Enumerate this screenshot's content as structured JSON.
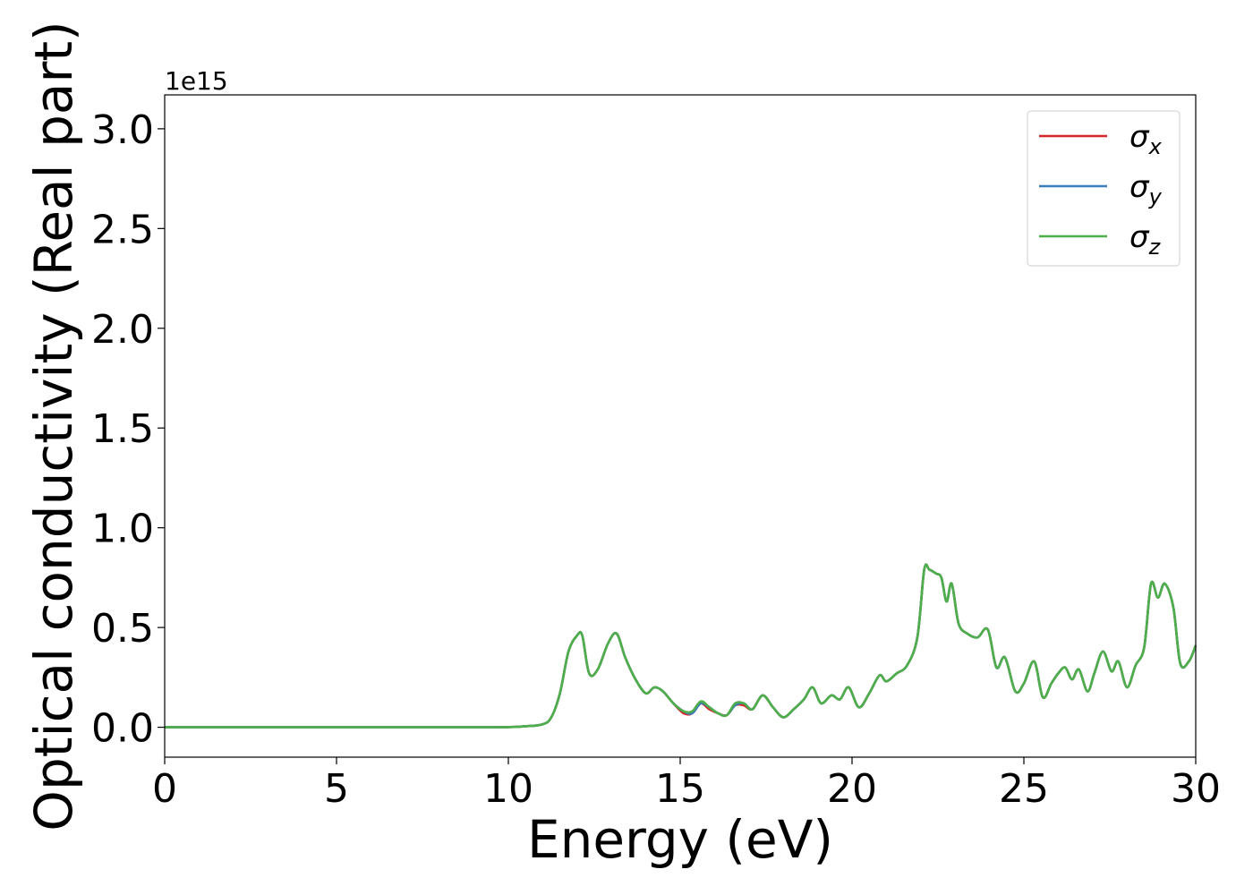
{
  "chart_data": {
    "type": "line",
    "xlabel": "Energy (eV)",
    "ylabel": "Optical conductivity (Real part)",
    "y_offset_label": "1e15",
    "xlim": [
      0,
      30
    ],
    "ylim": [
      -0.15,
      3.17
    ],
    "y_scale": 1000000000000000.0,
    "xticks": [
      "0",
      "5",
      "10",
      "15",
      "20",
      "25",
      "30"
    ],
    "yticks": [
      "0.0",
      "0.5",
      "1.0",
      "1.5",
      "2.0",
      "2.5",
      "3.0"
    ],
    "grid": false,
    "legend_position": "upper right",
    "legend": [
      {
        "symbol": "σ",
        "sub": "x",
        "color": "#d62728"
      },
      {
        "symbol": "σ",
        "sub": "y",
        "color": "#3a7dbb"
      },
      {
        "symbol": "σ",
        "sub": "z",
        "color": "#4daf4a"
      }
    ],
    "x": [
      0,
      5,
      9.5,
      10.5,
      11,
      11.25,
      11.5,
      11.75,
      12.0,
      12.15,
      12.35,
      12.6,
      12.9,
      13.15,
      13.4,
      13.7,
      14.0,
      14.25,
      14.5,
      14.8,
      15.1,
      15.35,
      15.6,
      15.85,
      16.1,
      16.35,
      16.6,
      16.85,
      17.1,
      17.4,
      17.7,
      18.0,
      18.3,
      18.6,
      18.85,
      19.1,
      19.4,
      19.65,
      19.9,
      20.2,
      20.5,
      20.8,
      21.0,
      21.3,
      21.6,
      21.9,
      22.1,
      22.25,
      22.45,
      22.6,
      22.75,
      22.9,
      23.1,
      23.35,
      23.65,
      23.95,
      24.2,
      24.45,
      24.75,
      25.0,
      25.3,
      25.55,
      25.8,
      26.0,
      26.2,
      26.4,
      26.6,
      26.85,
      27.05,
      27.3,
      27.55,
      27.75,
      28.0,
      28.25,
      28.5,
      28.7,
      28.9,
      29.1,
      29.35,
      29.55,
      29.8,
      30.0
    ],
    "series": [
      {
        "values": [
          0.0,
          0.0,
          0.0,
          0.005,
          0.015,
          0.05,
          0.17,
          0.38,
          0.46,
          0.46,
          0.27,
          0.29,
          0.42,
          0.47,
          0.35,
          0.24,
          0.17,
          0.2,
          0.18,
          0.12,
          0.07,
          0.07,
          0.12,
          0.09,
          0.07,
          0.06,
          0.11,
          0.11,
          0.09,
          0.16,
          0.1,
          0.05,
          0.09,
          0.14,
          0.2,
          0.12,
          0.16,
          0.14,
          0.2,
          0.1,
          0.17,
          0.26,
          0.23,
          0.27,
          0.31,
          0.45,
          0.79,
          0.79,
          0.77,
          0.75,
          0.63,
          0.72,
          0.52,
          0.47,
          0.45,
          0.49,
          0.3,
          0.35,
          0.18,
          0.22,
          0.33,
          0.15,
          0.22,
          0.27,
          0.3,
          0.24,
          0.29,
          0.18,
          0.27,
          0.38,
          0.28,
          0.33,
          0.2,
          0.31,
          0.4,
          0.72,
          0.65,
          0.72,
          0.6,
          0.32,
          0.33,
          0.41
        ]
      },
      {
        "values": [
          0.0,
          0.0,
          0.0,
          0.005,
          0.015,
          0.05,
          0.17,
          0.38,
          0.46,
          0.46,
          0.27,
          0.29,
          0.42,
          0.47,
          0.35,
          0.24,
          0.17,
          0.2,
          0.18,
          0.12,
          0.08,
          0.07,
          0.12,
          0.1,
          0.07,
          0.06,
          0.11,
          0.12,
          0.09,
          0.16,
          0.1,
          0.05,
          0.09,
          0.14,
          0.2,
          0.12,
          0.16,
          0.14,
          0.2,
          0.1,
          0.17,
          0.26,
          0.23,
          0.27,
          0.31,
          0.45,
          0.79,
          0.79,
          0.77,
          0.75,
          0.63,
          0.72,
          0.52,
          0.47,
          0.45,
          0.49,
          0.3,
          0.35,
          0.18,
          0.22,
          0.33,
          0.15,
          0.22,
          0.27,
          0.3,
          0.24,
          0.29,
          0.18,
          0.27,
          0.38,
          0.28,
          0.33,
          0.2,
          0.31,
          0.4,
          0.72,
          0.65,
          0.72,
          0.6,
          0.32,
          0.33,
          0.41
        ]
      },
      {
        "values": [
          0.0,
          0.0,
          0.0,
          0.005,
          0.015,
          0.05,
          0.17,
          0.38,
          0.46,
          0.46,
          0.27,
          0.29,
          0.42,
          0.47,
          0.35,
          0.24,
          0.17,
          0.2,
          0.18,
          0.12,
          0.08,
          0.08,
          0.13,
          0.1,
          0.07,
          0.06,
          0.12,
          0.12,
          0.09,
          0.16,
          0.1,
          0.05,
          0.09,
          0.14,
          0.2,
          0.12,
          0.16,
          0.14,
          0.2,
          0.1,
          0.17,
          0.26,
          0.23,
          0.27,
          0.31,
          0.45,
          0.79,
          0.79,
          0.77,
          0.75,
          0.63,
          0.72,
          0.52,
          0.47,
          0.45,
          0.49,
          0.3,
          0.35,
          0.18,
          0.22,
          0.33,
          0.15,
          0.22,
          0.27,
          0.3,
          0.24,
          0.29,
          0.18,
          0.27,
          0.38,
          0.28,
          0.33,
          0.2,
          0.31,
          0.4,
          0.72,
          0.65,
          0.72,
          0.6,
          0.32,
          0.33,
          0.41
        ]
      }
    ]
  }
}
